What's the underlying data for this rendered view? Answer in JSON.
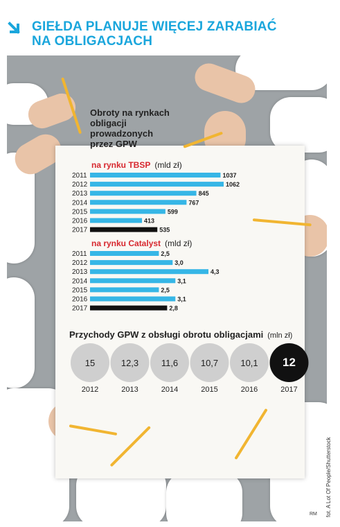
{
  "header": {
    "title_line1": "GIEŁDA PLANUJE WIĘCEJ ZARABIAĆ",
    "title_line2": "NA OBLIGACJACH"
  },
  "colors": {
    "accent": "#1aa6dc",
    "bar": "#36b6e6",
    "highlight": "#111111",
    "red": "#d7282f",
    "circle": "#cfcfcf"
  },
  "chart_data": [
    {
      "type": "bar",
      "title": "Obroty na rynkach obligacji prowadzonych przez GPW",
      "subtitle": "na rynku TBSP",
      "unit": "(mld zł)",
      "categories": [
        "2011",
        "2012",
        "2013",
        "2014",
        "2015",
        "2016",
        "2017"
      ],
      "values": [
        1037,
        1062,
        845,
        767,
        599,
        413,
        535
      ],
      "labels": [
        "1037",
        "1062",
        "845",
        "767",
        "599",
        "413",
        "535"
      ],
      "highlight": "2017"
    },
    {
      "type": "bar",
      "subtitle": "na rynku Catalyst",
      "unit": "(mld zł)",
      "categories": [
        "2011",
        "2012",
        "2013",
        "2014",
        "2015",
        "2016",
        "2017"
      ],
      "values": [
        2.5,
        3.0,
        4.3,
        3.1,
        2.5,
        3.1,
        2.8
      ],
      "labels": [
        "2,5",
        "3,0",
        "4,3",
        "3,1",
        "2,5",
        "3,1",
        "2,8"
      ],
      "highlight": "2017"
    },
    {
      "type": "bubble",
      "title": "Przychody GPW z obsługi obrotu obligacjami",
      "unit": "(mln zł)",
      "categories": [
        "2012",
        "2013",
        "2014",
        "2015",
        "2016",
        "2017"
      ],
      "values": [
        15,
        12.3,
        11.6,
        10.7,
        10.1,
        12
      ],
      "labels": [
        "15",
        "12,3",
        "11,6",
        "10,7",
        "10,1",
        "12"
      ],
      "highlight": "2017"
    }
  ],
  "credit": "fot. A Lot Of People/Shutterstock",
  "initials": "RM"
}
